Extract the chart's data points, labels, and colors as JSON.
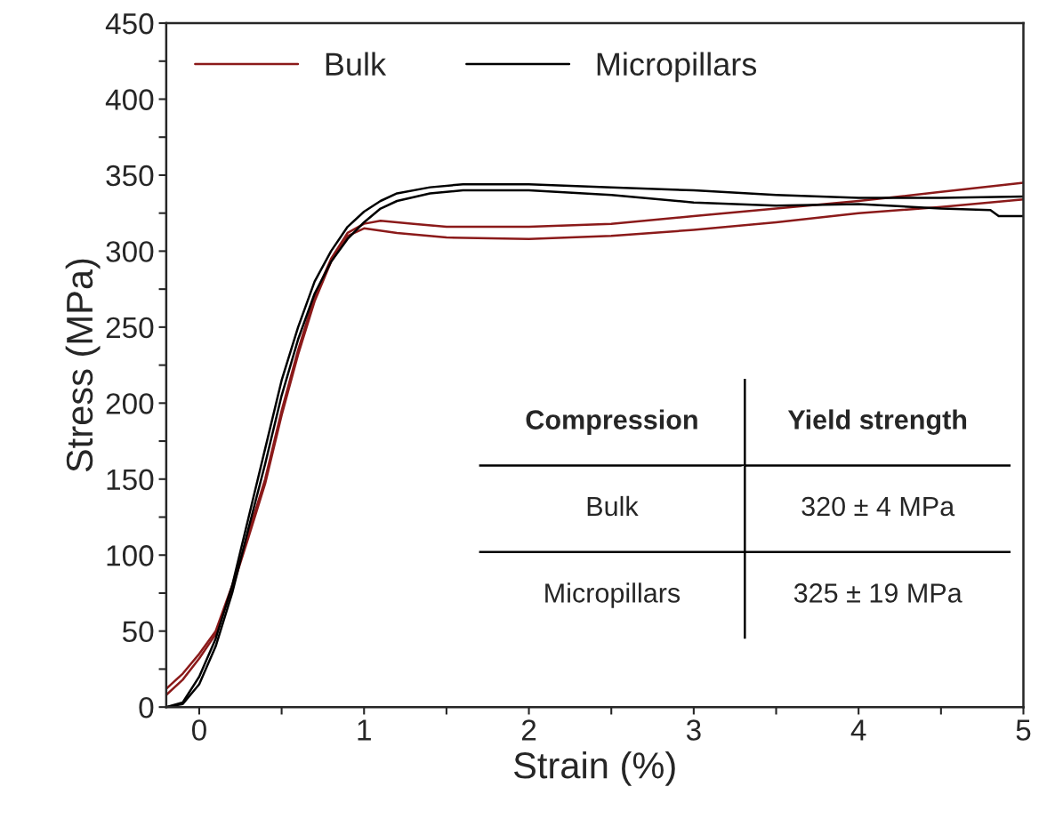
{
  "chart_data": {
    "type": "line",
    "xlabel": "Strain (%)",
    "ylabel": "Stress (MPa)",
    "xlim": [
      -0.2,
      5
    ],
    "ylim": [
      0,
      450
    ],
    "xticks": [
      0,
      {
        "value": 0.5,
        "label": null
      },
      1,
      {
        "value": 1.5,
        "label": null
      },
      2,
      {
        "value": 2.5,
        "label": null
      },
      3,
      {
        "value": 3.5,
        "label": null
      },
      4,
      {
        "value": 4.5,
        "label": null
      },
      5
    ],
    "yticks": [
      0,
      {
        "value": 25,
        "label": null
      },
      50,
      {
        "value": 75,
        "label": null
      },
      100,
      {
        "value": 125,
        "label": null
      },
      150,
      {
        "value": 175,
        "label": null
      },
      200,
      {
        "value": 225,
        "label": null
      },
      250,
      {
        "value": 275,
        "label": null
      },
      300,
      {
        "value": 325,
        "label": null
      },
      350,
      {
        "value": 375,
        "label": null
      },
      400,
      {
        "value": 425,
        "label": null
      },
      450
    ],
    "legend": "top left",
    "grid": false,
    "marker": "none",
    "line_style": "solid",
    "series": [
      {
        "name": "Bulk",
        "color": "#8b1a1a",
        "x": [
          -0.2,
          -0.1,
          0,
          0.1,
          0.2,
          0.3,
          0.4,
          0.5,
          0.6,
          0.7,
          0.8,
          0.9,
          1.0,
          1.1,
          1.3,
          1.5,
          2,
          2.5,
          3,
          3.5,
          4,
          4.5,
          5
        ],
        "values": [
          12,
          22,
          35,
          50,
          80,
          115,
          150,
          195,
          235,
          270,
          295,
          312,
          318,
          320,
          318,
          316,
          316,
          318,
          323,
          328,
          333,
          339,
          345
        ]
      },
      {
        "color": "#8b1a1a",
        "x": [
          -0.2,
          -0.1,
          0,
          0.1,
          0.2,
          0.3,
          0.4,
          0.5,
          0.6,
          0.7,
          0.8,
          0.9,
          1.0,
          1.2,
          1.5,
          2,
          2.5,
          3,
          3.5,
          4,
          4.5,
          5
        ],
        "values": [
          8,
          18,
          32,
          48,
          78,
          112,
          147,
          192,
          232,
          267,
          293,
          310,
          315,
          312,
          309,
          308,
          310,
          314,
          319,
          325,
          329,
          334
        ]
      },
      {
        "name": "Micropillars",
        "color": "#000000",
        "x": [
          -0.2,
          -0.1,
          0,
          0.1,
          0.2,
          0.3,
          0.4,
          0.5,
          0.6,
          0.7,
          0.8,
          0.9,
          1.0,
          1.1,
          1.2,
          1.4,
          1.6,
          2,
          2.5,
          3,
          3.5,
          4,
          4.5,
          5
        ],
        "values": [
          0,
          3,
          20,
          45,
          80,
          125,
          170,
          215,
          250,
          280,
          300,
          316,
          326,
          333,
          338,
          342,
          344,
          344,
          342,
          340,
          337,
          335,
          335,
          336
        ]
      },
      {
        "color": "#000000",
        "x": [
          -0.2,
          -0.1,
          0,
          0.1,
          0.2,
          0.3,
          0.4,
          0.5,
          0.6,
          0.7,
          0.8,
          0.9,
          1.0,
          1.1,
          1.2,
          1.4,
          1.6,
          2,
          2.5,
          3,
          3.5,
          4,
          4.5,
          4.8,
          4.85,
          5
        ],
        "values": [
          0,
          2,
          15,
          40,
          75,
          118,
          160,
          205,
          242,
          272,
          293,
          308,
          319,
          328,
          333,
          338,
          340,
          340,
          337,
          332,
          330,
          331,
          328,
          327,
          323,
          323
        ]
      }
    ],
    "annotations": [
      "Compression",
      "Yield strength",
      "Bulk",
      "320 ± 4 MPa",
      "Micropillars",
      "325 ± 19 MPa"
    ]
  }
}
